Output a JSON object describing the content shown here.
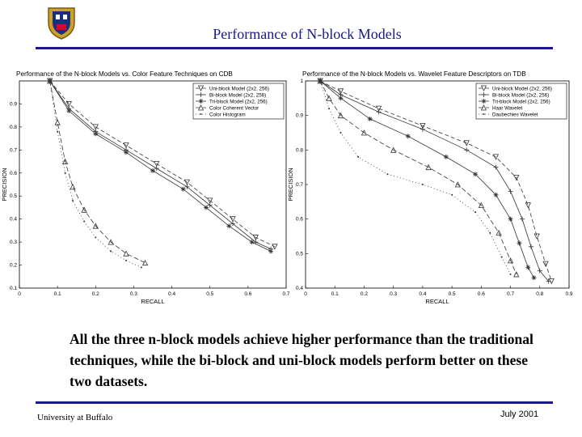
{
  "slide": {
    "title": "Performance of N-block Models",
    "caption": "All the three n-block models achieve higher performance than the traditional techniques, while the bi-block and uni-block models perform better on these two datasets.",
    "footer_left": "University at Buffalo",
    "footer_right": "July 2001",
    "accent_color": "#1a1a8c"
  },
  "chart_data": [
    {
      "type": "line",
      "title": "Performance of the N-block Models vs. Color Feature Techniques on CDB",
      "xlabel": "RECALL",
      "ylabel": "PRECISION",
      "xlim": [
        0,
        0.7
      ],
      "ylim": [
        0.1,
        1.0
      ],
      "xticks": [
        "0",
        "0.1",
        "0.2",
        "0.3",
        "0.4",
        "0.5",
        "0.6",
        "0.7"
      ],
      "yticks": [
        "0.1",
        "0.2",
        "0.3",
        "0.4",
        "0.5",
        "0.6",
        "0.7",
        "0.8",
        "0.9"
      ],
      "legend_position": "top-right",
      "series": [
        {
          "name": "Uni-block Model (2x2, 256)",
          "marker": "tri-down",
          "dash": "5,3",
          "x": [
            0.08,
            0.13,
            0.2,
            0.28,
            0.36,
            0.44,
            0.5,
            0.56,
            0.62,
            0.67
          ],
          "y": [
            1.0,
            0.9,
            0.8,
            0.72,
            0.64,
            0.56,
            0.48,
            0.4,
            0.32,
            0.28
          ]
        },
        {
          "name": "Bi-block Model (2x2, 256)",
          "marker": "plus",
          "dash": "",
          "x": [
            0.08,
            0.13,
            0.2,
            0.28,
            0.36,
            0.44,
            0.5,
            0.56,
            0.62,
            0.66
          ],
          "y": [
            1.0,
            0.88,
            0.78,
            0.7,
            0.62,
            0.54,
            0.46,
            0.38,
            0.3,
            0.27
          ]
        },
        {
          "name": "Tri-block Model (2x2, 256)",
          "marker": "star",
          "dash": "",
          "x": [
            0.08,
            0.13,
            0.2,
            0.28,
            0.35,
            0.43,
            0.49,
            0.55,
            0.61,
            0.66
          ],
          "y": [
            1.0,
            0.87,
            0.77,
            0.69,
            0.61,
            0.53,
            0.45,
            0.37,
            0.3,
            0.26
          ]
        },
        {
          "name": "Color Coherent Vector",
          "marker": "tri-up",
          "dash": "6,3",
          "x": [
            0.08,
            0.1,
            0.12,
            0.14,
            0.17,
            0.2,
            0.24,
            0.28,
            0.33
          ],
          "y": [
            1.0,
            0.82,
            0.65,
            0.54,
            0.44,
            0.37,
            0.3,
            0.25,
            0.21
          ]
        },
        {
          "name": "Color Histogram",
          "marker": "dot",
          "dash": "1,3",
          "x": [
            0.08,
            0.1,
            0.12,
            0.14,
            0.17,
            0.2,
            0.24,
            0.28,
            0.32
          ],
          "y": [
            1.0,
            0.78,
            0.6,
            0.48,
            0.39,
            0.32,
            0.26,
            0.22,
            0.19
          ]
        }
      ]
    },
    {
      "type": "line",
      "title": "Performance of the N-block Models vs. Wavelet Feature Descriptors on TDB",
      "xlabel": "RECALL",
      "ylabel": "PRECISION",
      "xlim": [
        0,
        0.9
      ],
      "ylim": [
        0.4,
        1.0
      ],
      "xticks": [
        "0",
        "0.1",
        "0.2",
        "0.3",
        "0.4",
        "0.5",
        "0.6",
        "0.7",
        "0.8",
        "0.9"
      ],
      "yticks": [
        "0.4",
        "0.5",
        "0.6",
        "0.7",
        "0.8",
        "0.9",
        "1"
      ],
      "legend_position": "top-right",
      "series": [
        {
          "name": "Uni-block Model (2x2, 256)",
          "marker": "tri-down",
          "dash": "5,3",
          "x": [
            0.05,
            0.12,
            0.25,
            0.4,
            0.55,
            0.65,
            0.72,
            0.76,
            0.79,
            0.82,
            0.84
          ],
          "y": [
            1.0,
            0.97,
            0.92,
            0.87,
            0.82,
            0.78,
            0.72,
            0.64,
            0.55,
            0.47,
            0.42
          ]
        },
        {
          "name": "Bi-block Model (2x2, 256)",
          "marker": "plus",
          "dash": "",
          "x": [
            0.05,
            0.12,
            0.25,
            0.4,
            0.55,
            0.65,
            0.7,
            0.74,
            0.77,
            0.8,
            0.83
          ],
          "y": [
            1.0,
            0.96,
            0.91,
            0.86,
            0.8,
            0.75,
            0.68,
            0.6,
            0.52,
            0.45,
            0.42
          ]
        },
        {
          "name": "Tri-block Model (2x2, 256)",
          "marker": "star",
          "dash": "",
          "x": [
            0.05,
            0.12,
            0.22,
            0.35,
            0.48,
            0.58,
            0.65,
            0.7,
            0.73,
            0.76,
            0.78
          ],
          "y": [
            1.0,
            0.95,
            0.89,
            0.84,
            0.78,
            0.73,
            0.67,
            0.6,
            0.53,
            0.46,
            0.43
          ]
        },
        {
          "name": "Haar Wavelet",
          "marker": "tri-up",
          "dash": "6,3",
          "x": [
            0.05,
            0.08,
            0.12,
            0.2,
            0.3,
            0.42,
            0.52,
            0.6,
            0.66,
            0.7,
            0.72
          ],
          "y": [
            1.0,
            0.95,
            0.9,
            0.85,
            0.8,
            0.75,
            0.7,
            0.64,
            0.56,
            0.48,
            0.44
          ]
        },
        {
          "name": "Daubechies Wavelet",
          "marker": "dot",
          "dash": "1,3",
          "x": [
            0.05,
            0.08,
            0.12,
            0.18,
            0.28,
            0.4,
            0.5,
            0.58,
            0.63,
            0.67,
            0.7
          ],
          "y": [
            1.0,
            0.92,
            0.85,
            0.78,
            0.73,
            0.7,
            0.67,
            0.62,
            0.56,
            0.49,
            0.44
          ]
        }
      ]
    }
  ]
}
